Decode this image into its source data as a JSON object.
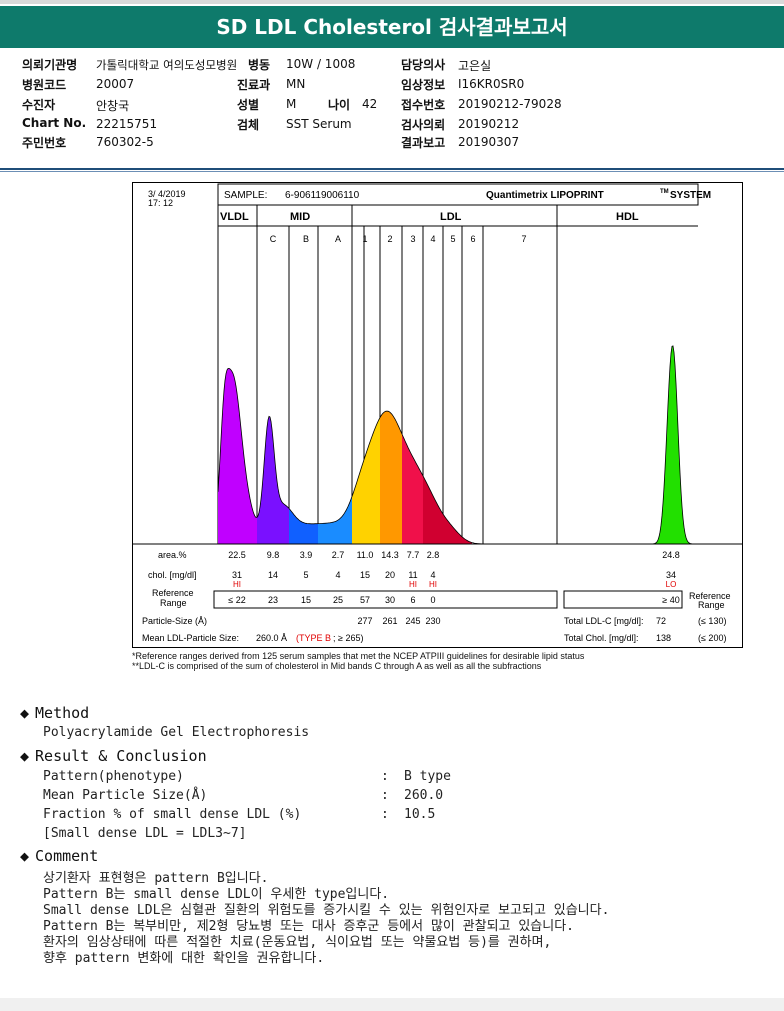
{
  "header": {
    "title": "SD LDL Cholesterol 검사결과보고서"
  },
  "info": {
    "institution_label": "의뢰기관명",
    "institution": "가톨릭대학교 여의도성모병원",
    "ward_label": "병동",
    "ward": "10W / 1008",
    "doctor_label": "담당의사",
    "doctor": "고은실",
    "hospital_code_label": "병원코드",
    "hospital_code": "20007",
    "dept_label": "진료과",
    "dept": "MN",
    "clinical_label": "임상정보",
    "clinical": "I16KR0SR0",
    "patient_label": "수진자",
    "patient": "안창국",
    "sex_label": "성별",
    "sex": "M",
    "age_label": "나이",
    "age": "42",
    "receipt_label": "접수번호",
    "receipt": "20190212-79028",
    "chart_label": "Chart No.",
    "chart_no": "22215751",
    "specimen_label": "검체",
    "specimen": "SST Serum",
    "request_label": "검사의뢰",
    "request": "20190212",
    "rrn_label": "주민번호",
    "rrn": "760302-5",
    "report_label": "결과보고",
    "report": "20190307"
  },
  "chart_data": {
    "type": "area",
    "datetime_line1": "3/ 4/2019",
    "datetime_line2": "17: 12",
    "sample_label": "SAMPLE:",
    "sample": "6-906119006110",
    "system_name": "Quantimetrix LIPOPRINT",
    "system_tm": "TM",
    "system_suffix": "SYSTEM",
    "groups": [
      "VLDL",
      "MID",
      "LDL",
      "HDL"
    ],
    "bands": [
      "C",
      "B",
      "A",
      "1",
      "2",
      "3",
      "4",
      "5",
      "6",
      "7"
    ],
    "rows": {
      "area_label": "area.%",
      "chol_label": "chol. [mg/dl]",
      "ref_label_1": "Reference",
      "ref_label_2": "Range",
      "ref_label_right_1": "Reference",
      "ref_label_right_2": "Range",
      "area": [
        "22.5",
        "9.8",
        "3.9",
        "2.7",
        "11.0",
        "14.3",
        "7.7",
        "2.8",
        "24.8"
      ],
      "chol": [
        "31",
        "14",
        "5",
        "4",
        "15",
        "20",
        "11",
        "4",
        "34"
      ],
      "flags": [
        "HI",
        "",
        "",
        "",
        "",
        "",
        "HI",
        "HI",
        "LO"
      ],
      "ref": [
        "≤ 22",
        "23",
        "15",
        "25",
        "57",
        "30",
        "6",
        "0",
        "≥ 40"
      ]
    },
    "particle_size_label": "Particle-Size (Å)",
    "particle_sizes": [
      "277",
      "261",
      "245",
      "230"
    ],
    "mean_label": "Mean LDL-Particle Size:",
    "mean_value": "260.0 Å",
    "mean_type": "(TYPE B",
    "mean_ref": "; ≥ 265)",
    "total_ldl_label": "Total LDL-C [mg/dl]:",
    "total_ldl": "72",
    "total_ldl_ref": "(≤ 130)",
    "total_chol_label": "Total Chol. [mg/dl]:",
    "total_chol": "138",
    "total_chol_ref": "(≤ 200)",
    "colors": {
      "vldl": "#c000ff",
      "mid_c": "#7a10ff",
      "mid_b": "#1060ff",
      "mid_a": "#1a8cff",
      "ldl1": "#ffd200",
      "ldl2": "#ff9800",
      "ldl3": "#f0104a",
      "ldl4": "#d00030",
      "hdl": "#22e000",
      "flag": "#e00000",
      "system": "#d000d0"
    }
  },
  "footnotes": {
    "line1": "*Reference ranges derived from 125 serum samples that met the NCEP ATPIII guidelines for desirable lipid status",
    "line2": "**LDL-C is comprised of the sum of cholesterol in Mid bands C through A as well as all the subfractions"
  },
  "method": {
    "heading": "Method",
    "text": "Polyacrylamide Gel Electrophoresis"
  },
  "result": {
    "heading": "Result & Conclusion",
    "items": [
      {
        "label": "Pattern(phenotype)",
        "value": "B type"
      },
      {
        "label": "Mean Particle Size(Å)",
        "value": "260.0"
      },
      {
        "label": "Fraction % of small dense LDL (%)",
        "value": "10.5"
      }
    ],
    "note": "[Small dense LDL = LDL3~7]",
    "colon": ":"
  },
  "comment": {
    "heading": "Comment",
    "lines": [
      "상기환자 표현형은 pattern B입니다.",
      "Pattern B는 small dense LDL이 우세한 type입니다.",
      "Small dense LDL은 심혈관 질환의 위험도를 증가시킬 수 있는 위험인자로 보고되고 있습니다.",
      "Pattern B는 복부비만, 제2형 당뇨병 또는 대사 증후군 등에서 많이 관찰되고 있습니다.",
      "환자의 임상상태에 따른 적절한 치료(운동요법, 식이요법 또는 약물요법 등)를 권하며,",
      "향후 pattern 변화에 대한 확인을 권유합니다."
    ]
  }
}
